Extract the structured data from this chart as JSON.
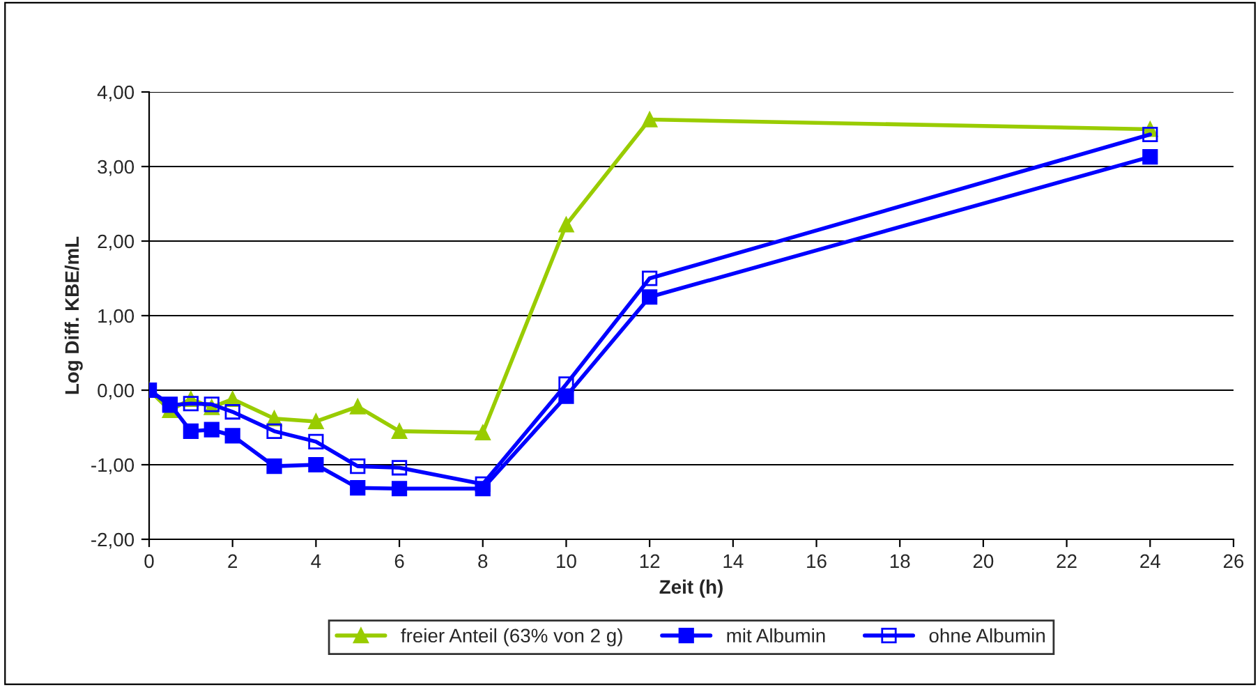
{
  "chart_data": {
    "type": "line",
    "xlabel": "Zeit (h)",
    "ylabel": "Log Diff. KBE/mL",
    "x": [
      0,
      0.5,
      1,
      1.5,
      2,
      3,
      4,
      5,
      6,
      8,
      10,
      12,
      24
    ],
    "series": [
      {
        "name": "freier Anteil (63% von 2 g)",
        "color": "#99cc00",
        "marker": "triangle",
        "values": [
          0,
          -0.27,
          -0.12,
          -0.23,
          -0.12,
          -0.38,
          -0.42,
          -0.22,
          -0.55,
          -0.57,
          2.22,
          3.63,
          3.5
        ]
      },
      {
        "name": "mit Albumin",
        "color": "#0000ff",
        "marker": "square",
        "values": [
          0,
          -0.19,
          -0.55,
          -0.53,
          -0.61,
          -1.02,
          -1.0,
          -1.31,
          -1.32,
          -1.32,
          -0.08,
          1.25,
          3.13
        ]
      },
      {
        "name": "ohne Albumin",
        "color": "#0000ff",
        "marker": "square",
        "values": [
          0,
          -0.2,
          -0.18,
          -0.19,
          -0.29,
          -0.55,
          -0.69,
          -1.02,
          -1.04,
          -1.26,
          0.08,
          1.5,
          3.43
        ]
      }
    ],
    "xlim": [
      0,
      26
    ],
    "xticks": [
      0,
      2,
      4,
      6,
      8,
      10,
      12,
      14,
      16,
      18,
      20,
      22,
      24,
      26
    ],
    "ylim": [
      -2,
      4
    ],
    "yticks": [
      {
        "value": -2,
        "label": "-2,00"
      },
      {
        "value": -1,
        "label": "-1,00"
      },
      {
        "value": 0,
        "label": "0,00"
      },
      {
        "value": 1,
        "label": "1,00"
      },
      {
        "value": 2,
        "label": "2,00"
      },
      {
        "value": 3,
        "label": "3,00"
      },
      {
        "value": 4,
        "label": "4,00"
      }
    ],
    "grid": "y",
    "legend": "bottom",
    "line_style": "solid"
  }
}
